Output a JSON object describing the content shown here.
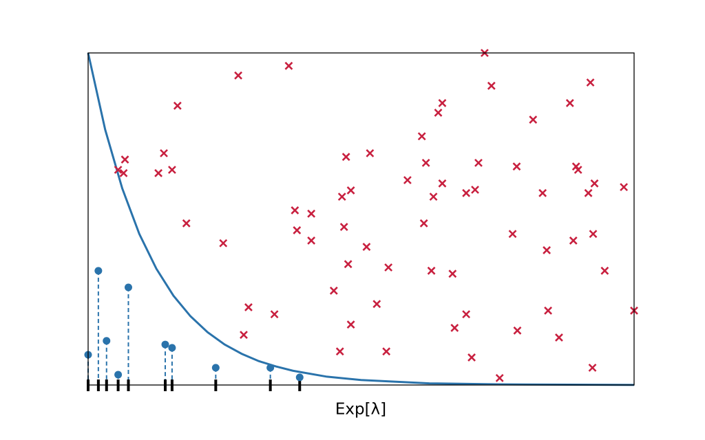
{
  "chart_data": {
    "type": "scatter",
    "xlabel": "Exp[λ]",
    "xlim": [
      0,
      8
    ],
    "ylim": [
      0,
      1
    ],
    "frame": true,
    "series": [
      {
        "kind": "line",
        "color": "#2a73ab",
        "x": [
          0,
          0.25,
          0.5,
          0.75,
          1,
          1.25,
          1.5,
          1.75,
          2,
          2.25,
          2.5,
          2.75,
          3,
          3.5,
          4,
          5,
          6,
          8
        ],
        "values": [
          1,
          0.769,
          0.592,
          0.455,
          0.35,
          0.269,
          0.207,
          0.159,
          0.122,
          0.094,
          0.072,
          0.056,
          0.043,
          0.025,
          0.015,
          0.005,
          0.002,
          0.0002
        ]
      },
      {
        "kind": "points",
        "marker": "o",
        "stems": true,
        "rug": true,
        "color": "#2a73ab",
        "x": [
          0,
          0.15,
          0.27,
          0.44,
          0.59,
          1.13,
          1.23,
          1.87,
          2.67,
          3.1
        ],
        "values": [
          0.091,
          0.344,
          0.133,
          0.031,
          0.294,
          0.122,
          0.112,
          0.052,
          0.052,
          0.023
        ]
      },
      {
        "kind": "points",
        "marker": "x",
        "color": "#c8203f",
        "x": [
          2.2,
          2.94,
          1.31,
          0.54,
          0.44,
          0.52,
          1.11,
          1.23,
          1.03,
          1.44,
          1.98,
          2.35,
          2.28,
          2.73,
          3.03,
          3.27,
          3.06,
          3.27,
          3.6,
          3.69,
          3.72,
          3.78,
          3.85,
          3.75,
          3.81,
          4.08,
          4.13,
          4.23,
          3.85,
          4.4,
          4.37,
          4.68,
          4.89,
          4.95,
          4.92,
          5.06,
          5.13,
          5.19,
          5.19,
          5.03,
          5.34,
          5.37,
          5.54,
          5.54,
          5.67,
          5.72,
          5.62,
          5.81,
          5.91,
          6.03,
          6.28,
          6.22,
          6.29,
          6.52,
          6.66,
          6.72,
          6.74,
          6.9,
          7.06,
          7.15,
          7.18,
          7.36,
          7.42,
          7.33,
          7.11,
          7.4,
          7.57,
          7.39,
          7.85,
          8.0
        ],
        "values": [
          0.932,
          0.961,
          0.841,
          0.679,
          0.648,
          0.638,
          0.698,
          0.648,
          0.638,
          0.487,
          0.427,
          0.234,
          0.151,
          0.213,
          0.526,
          0.516,
          0.466,
          0.435,
          0.284,
          0.101,
          0.567,
          0.687,
          0.586,
          0.476,
          0.364,
          0.416,
          0.698,
          0.244,
          0.182,
          0.354,
          0.101,
          0.617,
          0.749,
          0.669,
          0.487,
          0.567,
          0.82,
          0.849,
          0.607,
          0.344,
          0.335,
          0.172,
          0.213,
          0.578,
          0.588,
          0.669,
          0.083,
          1.0,
          0.901,
          0.021,
          0.658,
          0.455,
          0.164,
          0.799,
          0.578,
          0.406,
          0.224,
          0.143,
          0.849,
          0.658,
          0.648,
          0.911,
          0.607,
          0.578,
          0.435,
          0.455,
          0.344,
          0.052,
          0.596,
          0.224
        ]
      }
    ]
  }
}
